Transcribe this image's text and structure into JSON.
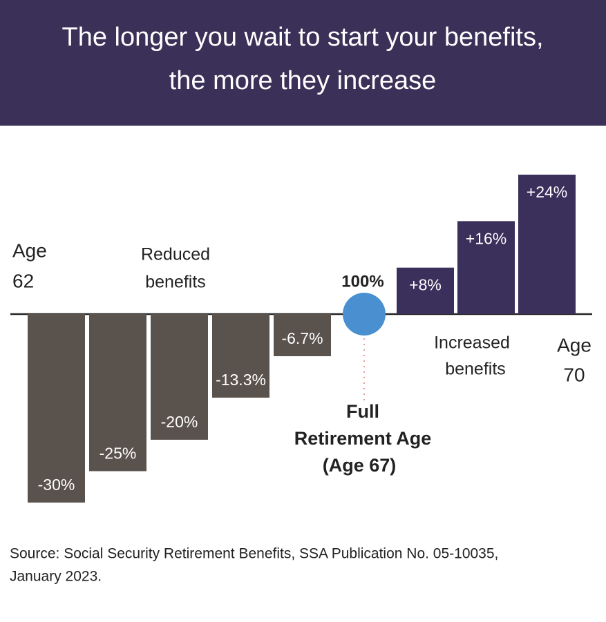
{
  "chart_data": {
    "type": "bar",
    "title": [
      "The longer you wait to start your benefits,",
      "the more they increase"
    ],
    "categories": [
      null,
      null,
      null,
      null,
      null,
      null,
      null,
      null
    ],
    "values": [
      -30,
      -25,
      -20,
      -13.3,
      -6.7,
      8,
      16,
      24
    ],
    "value_labels": [
      "-30%",
      "-25%",
      "-20%",
      "-13.3%",
      "-6.7%",
      "+8%",
      "+16%",
      "+24%"
    ],
    "colors": {
      "negative": "#5a524d",
      "positive": "#3b2f5c",
      "marker": "#4a90d0"
    },
    "ylim": [
      -30,
      24
    ],
    "annotations": {
      "start": [
        "Age",
        "62"
      ],
      "reduced": [
        "Reduced",
        "benefits"
      ],
      "full_value": "100%",
      "full": [
        "Full",
        "Retirement Age",
        "(Age 67)"
      ],
      "increased": [
        "Increased",
        "benefits"
      ],
      "end": [
        "Age",
        "70"
      ]
    },
    "source": [
      "Source: Social Security Retirement Benefits, SSA Publication No. 05-10035,",
      "January 2023."
    ]
  }
}
